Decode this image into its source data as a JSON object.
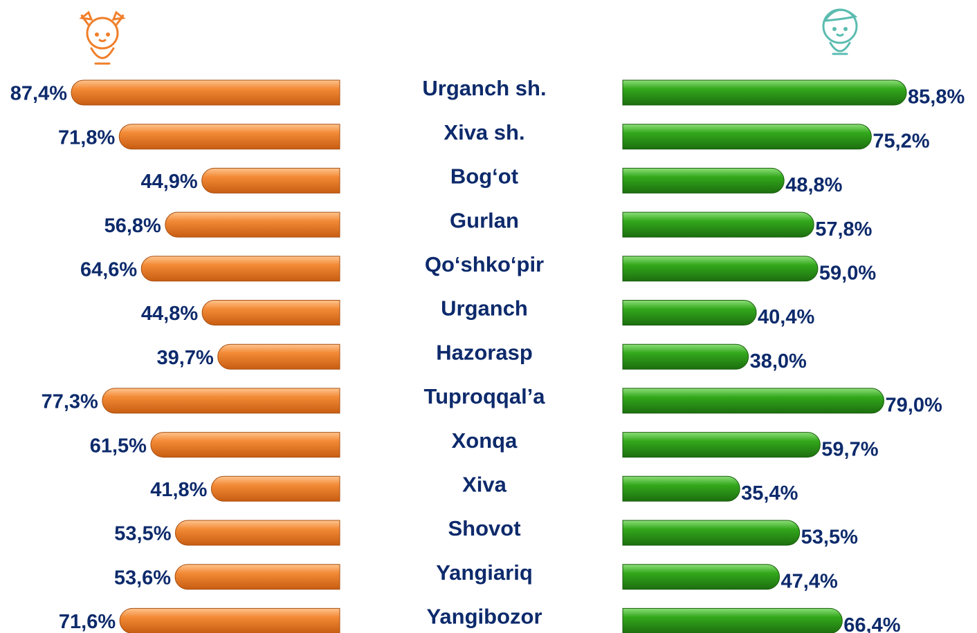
{
  "chart_data": {
    "type": "butterfly",
    "categories": [
      "Urganch sh.",
      "Xiva sh.",
      "Bog‘ot",
      "Gurlan",
      "Qo‘shko‘pir",
      "Urganch",
      "Hazorasp",
      "Tuproqqal’a",
      "Xonqa",
      "Xiva",
      "Shovot",
      "Yangiariq",
      "Yangibozor"
    ],
    "series": [
      {
        "color": "#f07f2a",
        "values": [
          87.4,
          71.8,
          44.9,
          56.8,
          64.6,
          44.8,
          39.7,
          77.3,
          61.5,
          41.8,
          53.5,
          53.6,
          71.6
        ],
        "value_labels": [
          "87,4%",
          "71,8%",
          "44,9%",
          "56,8%",
          "64,6%",
          "44,8%",
          "39,7%",
          "77,3%",
          "61,5%",
          "41,8%",
          "53,5%",
          "53,6%",
          "71,6%"
        ]
      },
      {
        "color": "#2e9e1a",
        "values": [
          85.8,
          75.2,
          48.8,
          57.8,
          59.0,
          40.4,
          38.0,
          79.0,
          59.7,
          35.4,
          53.5,
          47.4,
          66.4
        ],
        "value_labels": [
          "85,8%",
          "75,2%",
          "48,8%",
          "57,8%",
          "59,0%",
          "40,4%",
          "38,0%",
          "79,0%",
          "59,7%",
          "35,4%",
          "53,5%",
          "47,4%",
          "66,4%"
        ]
      }
    ]
  }
}
